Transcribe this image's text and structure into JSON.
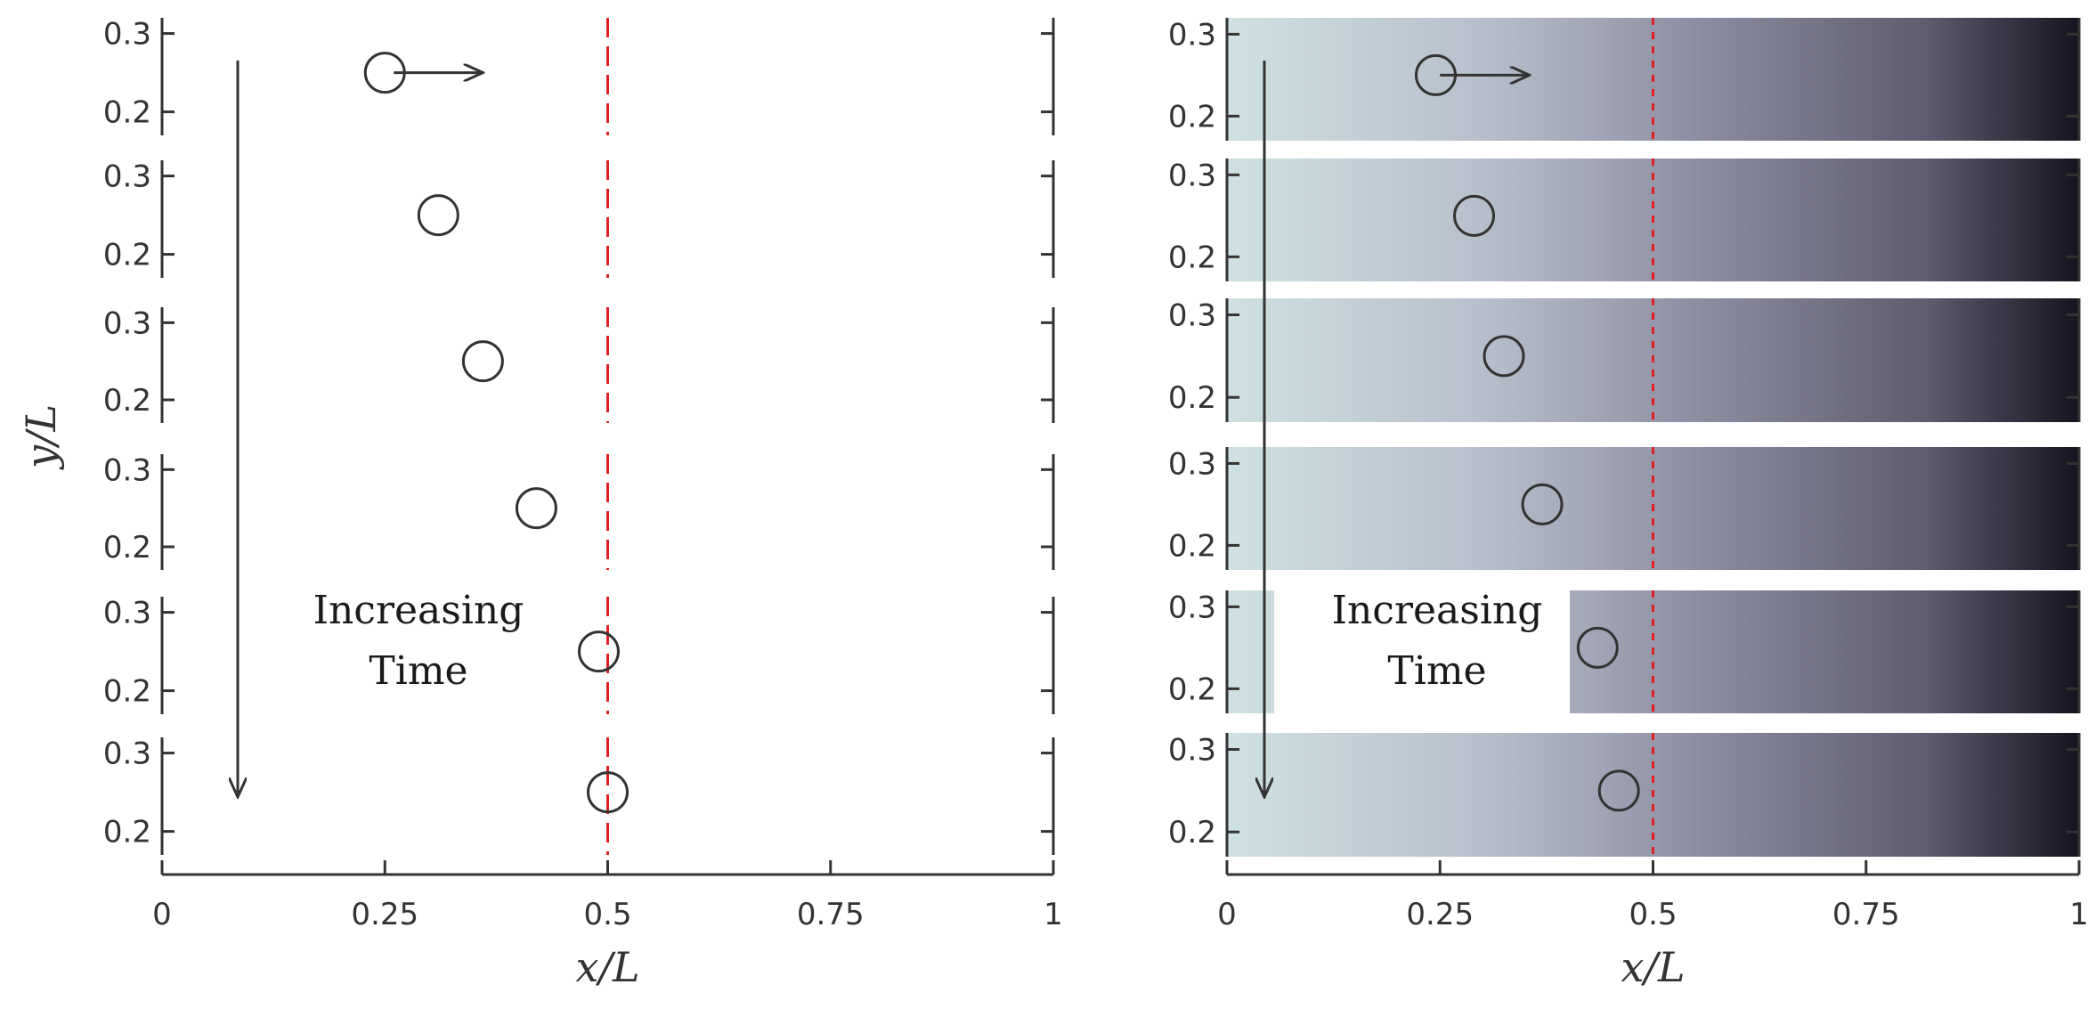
{
  "chart_data": [
    {
      "type": "scatter",
      "panel": "left",
      "background": "uniform",
      "xlabel": "x/L",
      "ylabel": "y/L",
      "xlim": [
        0,
        1
      ],
      "ylim": [
        0.17,
        0.32
      ],
      "x_ticks": [
        0,
        0.25,
        0.5,
        0.75,
        1
      ],
      "x_tick_labels": [
        "0",
        "0.25",
        "0.5",
        "0.75",
        "1"
      ],
      "y_ticks": [
        0.2,
        0.3
      ],
      "y_tick_labels": [
        "0.2",
        "0.3"
      ],
      "reference_line": {
        "x": 0.5,
        "style": "dashed",
        "color": "#e02020"
      },
      "annotation": [
        "Increasing",
        "Time"
      ],
      "velocity_arrow": {
        "x0": 0.26,
        "x1": 0.36,
        "y": 0.25
      },
      "snapshots": [
        {
          "x": 0.25,
          "y": 0.25
        },
        {
          "x": 0.31,
          "y": 0.25
        },
        {
          "x": 0.36,
          "y": 0.25
        },
        {
          "x": 0.42,
          "y": 0.25
        },
        {
          "x": 0.49,
          "y": 0.25
        },
        {
          "x": 0.5,
          "y": 0.25
        }
      ]
    },
    {
      "type": "scatter",
      "panel": "right",
      "background": "gradient",
      "gradient_colors": [
        "#cfe1e2",
        "#b7bfcc",
        "#8e8ea2",
        "#5e5c6f",
        "#141420"
      ],
      "xlabel": "x/L",
      "xlim": [
        0,
        1
      ],
      "ylim": [
        0.17,
        0.32
      ],
      "x_ticks": [
        0,
        0.25,
        0.5,
        0.75,
        1
      ],
      "x_tick_labels": [
        "0",
        "0.25",
        "0.5",
        "0.75",
        "1"
      ],
      "y_ticks": [
        0.2,
        0.3
      ],
      "y_tick_labels": [
        "0.2",
        "0.3"
      ],
      "reference_line": {
        "x": 0.5,
        "style": "dotted",
        "color": "#e02020"
      },
      "annotation": [
        "Increasing",
        "Time"
      ],
      "velocity_arrow": {
        "x0": 0.25,
        "x1": 0.355,
        "y": 0.25
      },
      "snapshots": [
        {
          "x": 0.245,
          "y": 0.25
        },
        {
          "x": 0.29,
          "y": 0.25
        },
        {
          "x": 0.325,
          "y": 0.25
        },
        {
          "x": 0.37,
          "y": 0.25
        },
        {
          "x": 0.435,
          "y": 0.25
        },
        {
          "x": 0.46,
          "y": 0.25
        }
      ]
    }
  ]
}
